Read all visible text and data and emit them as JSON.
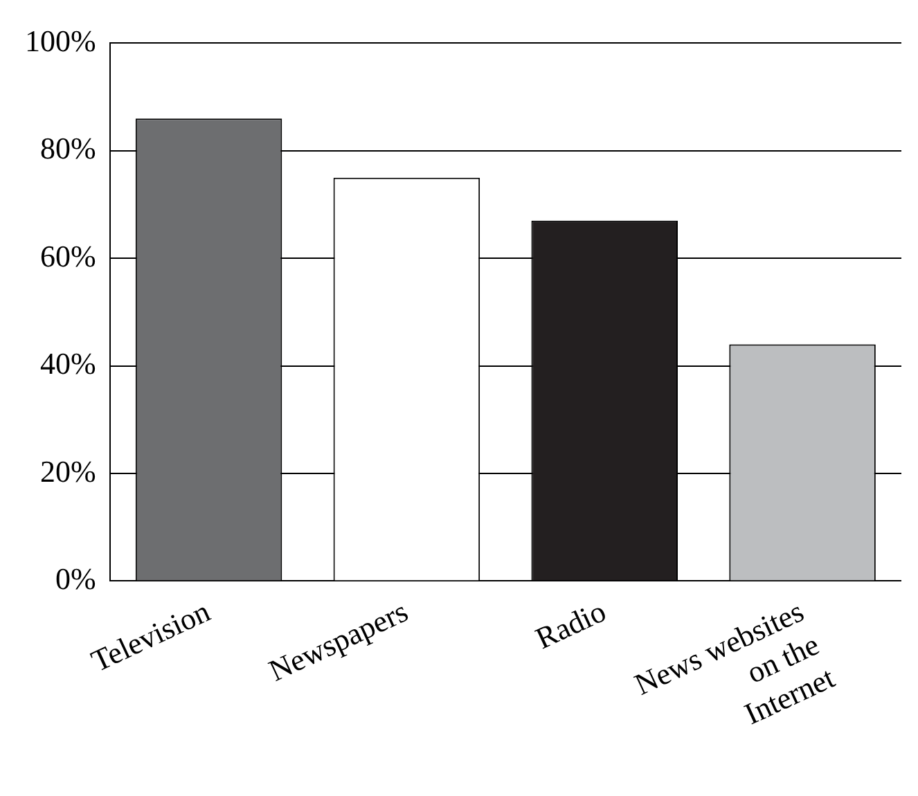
{
  "chart_data": {
    "type": "bar",
    "categories": [
      "Television",
      "Newspapers",
      "Radio",
      "News websites\non the\nInternet"
    ],
    "values": [
      86,
      75,
      67,
      44
    ],
    "colors": [
      "#6d6e70",
      "#ffffff",
      "#231f20",
      "#bcbec0"
    ],
    "ylim": [
      0,
      100
    ],
    "yticks": [
      {
        "value": 0,
        "label": "0%"
      },
      {
        "value": 20,
        "label": "20%"
      },
      {
        "value": 40,
        "label": "40%"
      },
      {
        "value": 60,
        "label": "60%"
      },
      {
        "value": 80,
        "label": "80%"
      },
      {
        "value": 100,
        "label": "100%"
      }
    ],
    "grid": "y",
    "legend": false
  }
}
